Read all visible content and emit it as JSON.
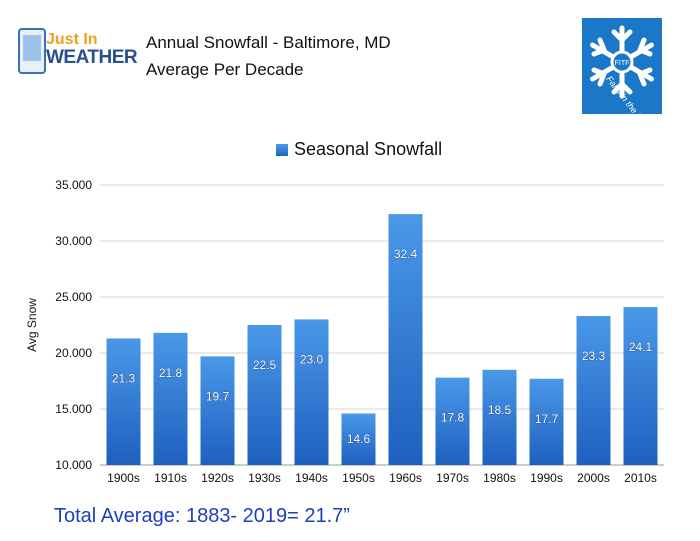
{
  "logo": {
    "line1": "Just In",
    "line2": "WEATHER"
  },
  "title": "Annual Snowfall - Baltimore, MD",
  "subtitle": "Average Per Decade",
  "badge": {
    "text": "Faith in the Flakes",
    "initials": "FITF",
    "color": "#1b78c8",
    "icon": "snowflake-icon"
  },
  "footer": "Total Average: 1883- 2019= 21.7”",
  "chart_data": {
    "type": "bar",
    "categories": [
      "1900s",
      "1910s",
      "1920s",
      "1930s",
      "1940s",
      "1950s",
      "1960s",
      "1970s",
      "1980s",
      "1990s",
      "2000s",
      "2010s"
    ],
    "series": [
      {
        "name": "Seasonal Snowfall",
        "values": [
          21.3,
          21.8,
          19.7,
          22.5,
          23.0,
          14.6,
          32.4,
          17.8,
          18.5,
          17.7,
          23.3,
          24.1
        ]
      }
    ],
    "ylabel": "Avg Snow",
    "ylim": [
      10,
      35
    ],
    "yticks": [
      "10.000",
      "15.000",
      "20.000",
      "25.000",
      "30.000",
      "35.000"
    ],
    "ytick_values": [
      10,
      15,
      20,
      25,
      30,
      35
    ],
    "grid": true,
    "legend": "top-center",
    "bar_color": "#2f7fd6"
  }
}
